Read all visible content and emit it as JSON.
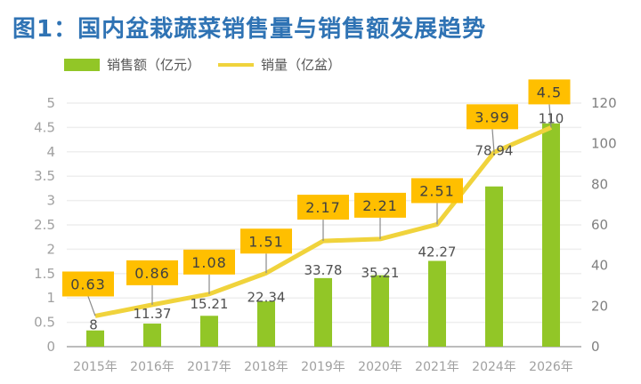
{
  "chart_data": {
    "type": "bar+line",
    "title": "图1：国内盆栽蔬菜销售量与销售额发展趋势",
    "categories": [
      "2015年",
      "2016年",
      "2017年",
      "2018年",
      "2019年",
      "2020年",
      "2021年",
      "2024年",
      "2026年"
    ],
    "series": [
      {
        "name": "销售额（亿元）",
        "type": "bar",
        "axis": "right",
        "values": [
          8,
          11.37,
          15.21,
          22.34,
          33.78,
          35.21,
          42.27,
          78.94,
          110
        ],
        "labels": [
          "8",
          "11.37",
          "15.21",
          "22.34",
          "33.78",
          "35.21",
          "42.27",
          "78.94",
          "110"
        ],
        "color": "#92c627"
      },
      {
        "name": "销量（亿盆）",
        "type": "line",
        "axis": "left",
        "values": [
          0.63,
          0.86,
          1.08,
          1.51,
          2.17,
          2.21,
          2.51,
          3.99,
          4.5
        ],
        "labels": [
          "0.63",
          "0.86",
          "1.08",
          "1.51",
          "2.17",
          "2.21",
          "2.51",
          "3.99",
          "4.5"
        ],
        "color": "#f0d33c",
        "label_box_color": "#ffbf00"
      }
    ],
    "left_axis": {
      "ylim": [
        0,
        5
      ],
      "ticks": [
        "0",
        "0.5",
        "1",
        "1.5",
        "2",
        "2.5",
        "3",
        "3.5",
        "4",
        "4.5",
        "5"
      ]
    },
    "right_axis": {
      "ylim": [
        0,
        120
      ],
      "ticks": [
        "0",
        "20",
        "40",
        "60",
        "80",
        "100",
        "120"
      ]
    },
    "grid": true,
    "legend": "top-left"
  }
}
